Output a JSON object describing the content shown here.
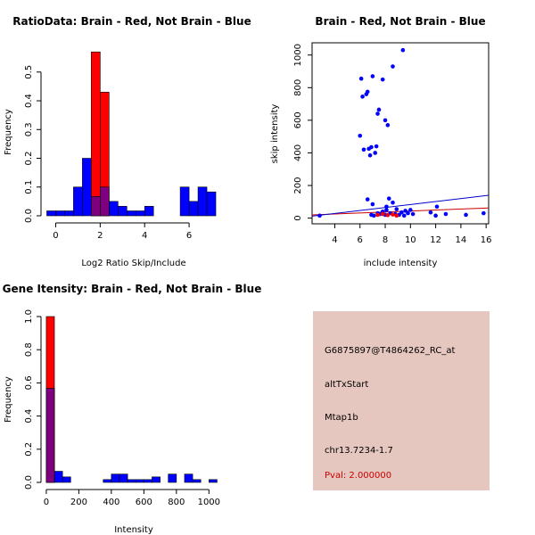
{
  "colors": {
    "red": "#ff0000",
    "blue": "#0000ff",
    "overlap": "#7f007f",
    "panel_bg": "#e6c7bf",
    "pval_text": "#cc0000",
    "red_line": "#cc0000",
    "blue_line": "#0000cc"
  },
  "chart_data": [
    {
      "type": "histogram",
      "title": "RatioData: Brain - Red, Not Brain - Blue",
      "xlabel": "Log2 Ratio Skip/Include",
      "ylabel": "Frequency",
      "xlim": [
        -0.5,
        7.4
      ],
      "ylim": [
        0,
        0.58
      ],
      "xticks": [
        0,
        2,
        4,
        6
      ],
      "yticks": [
        0.0,
        0.1,
        0.2,
        0.3,
        0.4,
        0.5
      ],
      "ytick_labels": [
        "0.0",
        "0.1",
        "0.2",
        "0.3",
        "0.4",
        "0.5"
      ],
      "series": [
        {
          "name": "Not Brain",
          "color": "blue",
          "bins": [
            [
              -0.4,
              -0.0,
              0.017
            ],
            [
              0.0,
              0.4,
              0.017
            ],
            [
              0.4,
              0.8,
              0.017
            ],
            [
              0.8,
              1.2,
              0.1
            ],
            [
              1.2,
              1.6,
              0.2
            ],
            [
              1.6,
              2.0,
              0.067
            ],
            [
              2.0,
              2.4,
              0.1
            ],
            [
              2.4,
              2.8,
              0.05
            ],
            [
              2.8,
              3.2,
              0.033
            ],
            [
              3.2,
              3.6,
              0.017
            ],
            [
              3.6,
              4.0,
              0.017
            ],
            [
              4.0,
              4.4,
              0.033
            ],
            [
              5.6,
              6.0,
              0.1
            ],
            [
              6.0,
              6.4,
              0.05
            ],
            [
              6.4,
              6.8,
              0.1
            ],
            [
              6.8,
              7.2,
              0.083
            ]
          ]
        },
        {
          "name": "Brain",
          "color": "red",
          "bins": [
            [
              1.6,
              2.0,
              0.57
            ],
            [
              2.0,
              2.4,
              0.43
            ]
          ]
        }
      ]
    },
    {
      "type": "scatter",
      "title": "Brain - Red, Not Brain - Blue",
      "xlabel": "include intensity",
      "ylabel": "skip intensity",
      "xlim": [
        2.2,
        16.2
      ],
      "ylim": [
        -35,
        1075
      ],
      "xticks": [
        4,
        6,
        8,
        10,
        12,
        14,
        16
      ],
      "yticks": [
        0,
        200,
        400,
        600,
        800,
        1000
      ],
      "series": [
        {
          "name": "Not Brain",
          "color": "blue",
          "points": [
            [
              2.8,
              15
            ],
            [
              6.0,
              505
            ],
            [
              6.1,
              855
            ],
            [
              6.2,
              745
            ],
            [
              6.3,
              420
            ],
            [
              6.5,
              760
            ],
            [
              6.6,
              775
            ],
            [
              6.7,
              425
            ],
            [
              6.8,
              385
            ],
            [
              6.9,
              435
            ],
            [
              7.0,
              870
            ],
            [
              7.2,
              400
            ],
            [
              7.3,
              440
            ],
            [
              7.4,
              640
            ],
            [
              7.5,
              665
            ],
            [
              7.8,
              850
            ],
            [
              8.0,
              600
            ],
            [
              8.2,
              570
            ],
            [
              8.6,
              930
            ],
            [
              9.4,
              1030
            ],
            [
              6.6,
              115
            ],
            [
              7.0,
              85
            ],
            [
              8.1,
              70
            ],
            [
              8.3,
              120
            ],
            [
              8.6,
              95
            ],
            [
              7.1,
              15
            ],
            [
              7.4,
              30
            ],
            [
              7.6,
              25
            ],
            [
              7.8,
              40
            ],
            [
              8.0,
              20
            ],
            [
              8.1,
              50
            ],
            [
              8.4,
              30
            ],
            [
              8.8,
              25
            ],
            [
              8.9,
              55
            ],
            [
              9.1,
              20
            ],
            [
              9.3,
              35
            ],
            [
              9.5,
              15
            ],
            [
              9.6,
              45
            ],
            [
              9.8,
              30
            ],
            [
              10.0,
              50
            ],
            [
              10.2,
              25
            ],
            [
              11.6,
              35
            ],
            [
              12.0,
              15
            ],
            [
              12.1,
              70
            ],
            [
              12.8,
              25
            ],
            [
              14.4,
              20
            ],
            [
              15.8,
              30
            ],
            [
              6.9,
              20
            ]
          ]
        },
        {
          "name": "Brain",
          "color": "red",
          "points": [
            [
              7.4,
              20
            ],
            [
              7.8,
              25
            ],
            [
              8.2,
              18
            ],
            [
              8.6,
              22
            ],
            [
              8.9,
              15
            ]
          ]
        }
      ],
      "fit_lines": [
        {
          "name": "Brain fit",
          "color": "red_line",
          "x": [
            2.2,
            16.2
          ],
          "y": [
            20,
            62
          ]
        },
        {
          "name": "Not Brain fit",
          "color": "blue_line",
          "x": [
            2.2,
            16.2
          ],
          "y": [
            12,
            140
          ]
        }
      ]
    },
    {
      "type": "histogram",
      "title": "Gene Itensity: Brain - Red, Not Brain - Blue",
      "xlabel": "Intensity",
      "ylabel": "Frequency",
      "xlim": [
        -5,
        1075
      ],
      "ylim": [
        0,
        1.0
      ],
      "xticks": [
        0,
        200,
        400,
        600,
        800,
        1000
      ],
      "yticks": [
        0.0,
        0.2,
        0.4,
        0.6,
        0.8,
        1.0
      ],
      "ytick_labels": [
        "0.0",
        "0.2",
        "0.4",
        "0.6",
        "0.8",
        "1.0"
      ],
      "series": [
        {
          "name": "Not Brain",
          "color": "blue",
          "bins": [
            [
              0,
              50,
              0.567
            ],
            [
              50,
              100,
              0.067
            ],
            [
              100,
              150,
              0.033
            ],
            [
              350,
              400,
              0.017
            ],
            [
              400,
              450,
              0.05
            ],
            [
              450,
              500,
              0.05
            ],
            [
              500,
              550,
              0.017
            ],
            [
              550,
              600,
              0.017
            ],
            [
              600,
              650,
              0.017
            ],
            [
              650,
              700,
              0.033
            ],
            [
              750,
              800,
              0.05
            ],
            [
              850,
              900,
              0.05
            ],
            [
              900,
              950,
              0.017
            ],
            [
              1000,
              1050,
              0.017
            ]
          ]
        },
        {
          "name": "Brain",
          "color": "red",
          "bins": [
            [
              0,
              50,
              1.0
            ]
          ]
        }
      ]
    }
  ],
  "info_panel": {
    "probe_id": "G6875897@T4864262_RC_at",
    "event_type": "altTxStart",
    "gene": "Mtap1b",
    "location": "chr13.7234-1.7",
    "pval": "Pval: 2.000000"
  }
}
